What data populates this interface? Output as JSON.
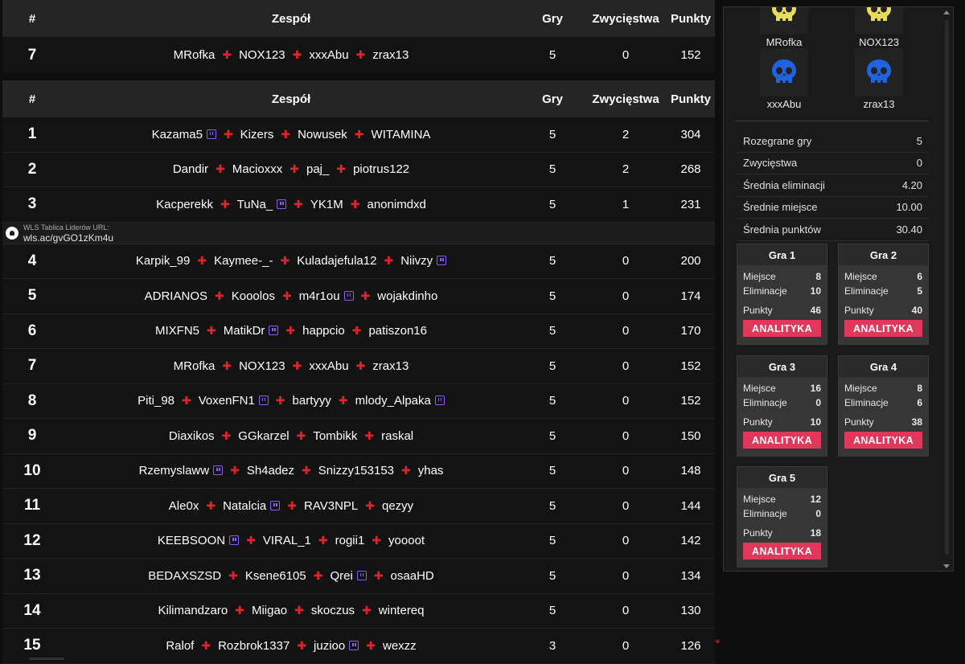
{
  "headers": {
    "num": "#",
    "team": "Zespół",
    "games": "Gry",
    "wins": "Zwycięstwa",
    "points": "Punkty"
  },
  "pinned": {
    "rank": "7",
    "players": [
      "MRofka",
      "NOX123",
      "xxxAbu",
      "zrax13"
    ],
    "games": "5",
    "wins": "0",
    "points": "152"
  },
  "rows": [
    {
      "rank": "1",
      "players": [
        {
          "name": "Kazama5",
          "tw": true
        },
        {
          "name": "Kizers"
        },
        {
          "name": "Nowusek"
        },
        {
          "name": "WITAMINA"
        }
      ],
      "games": "5",
      "wins": "2",
      "points": "304"
    },
    {
      "rank": "2",
      "players": [
        {
          "name": "Dandir"
        },
        {
          "name": "Macioxxx"
        },
        {
          "name": "paj_"
        },
        {
          "name": "piotrus122"
        }
      ],
      "games": "5",
      "wins": "2",
      "points": "268"
    },
    {
      "rank": "3",
      "players": [
        {
          "name": "Kacperekk"
        },
        {
          "name": "TuNa_",
          "tw": true
        },
        {
          "name": "YK1M"
        },
        {
          "name": "anonimdxd"
        }
      ],
      "games": "5",
      "wins": "1",
      "points": "231"
    },
    {
      "rank": "4",
      "players": [
        {
          "name": "Karpik_99"
        },
        {
          "name": "Kaymee-_-"
        },
        {
          "name": "Kuladajefula12"
        },
        {
          "name": "Niivzy",
          "tw": true
        }
      ],
      "games": "5",
      "wins": "0",
      "points": "200"
    },
    {
      "rank": "5",
      "players": [
        {
          "name": "ADRIANOS"
        },
        {
          "name": "Kooolos"
        },
        {
          "name": "m4r1ou",
          "tw": true
        },
        {
          "name": "wojakdinho"
        }
      ],
      "games": "5",
      "wins": "0",
      "points": "174"
    },
    {
      "rank": "6",
      "players": [
        {
          "name": "MIXFN5"
        },
        {
          "name": "MatikDr",
          "tw": true
        },
        {
          "name": "happcio"
        },
        {
          "name": "patiszon16"
        }
      ],
      "games": "5",
      "wins": "0",
      "points": "170"
    },
    {
      "rank": "7",
      "players": [
        {
          "name": "MRofka"
        },
        {
          "name": "NOX123"
        },
        {
          "name": "xxxAbu"
        },
        {
          "name": "zrax13"
        }
      ],
      "games": "5",
      "wins": "0",
      "points": "152"
    },
    {
      "rank": "8",
      "players": [
        {
          "name": "Piti_98"
        },
        {
          "name": "VoxenFN1",
          "tw": true
        },
        {
          "name": "bartyyy"
        },
        {
          "name": "mlody_Alpaka",
          "tw": true
        }
      ],
      "games": "5",
      "wins": "0",
      "points": "152"
    },
    {
      "rank": "9",
      "players": [
        {
          "name": "Diaxikos"
        },
        {
          "name": "GGkarzel"
        },
        {
          "name": "Tombikk"
        },
        {
          "name": "raskal"
        }
      ],
      "games": "5",
      "wins": "0",
      "points": "150"
    },
    {
      "rank": "10",
      "players": [
        {
          "name": "Rzemyslaww",
          "tw": true
        },
        {
          "name": "Sh4adez"
        },
        {
          "name": "Snizzy153153"
        },
        {
          "name": "yhas"
        }
      ],
      "games": "5",
      "wins": "0",
      "points": "148"
    },
    {
      "rank": "11",
      "players": [
        {
          "name": "Ale0x"
        },
        {
          "name": "Natalcia",
          "tw": true
        },
        {
          "name": "RAV3NPL"
        },
        {
          "name": "qezyy"
        }
      ],
      "games": "5",
      "wins": "0",
      "points": "144"
    },
    {
      "rank": "12",
      "players": [
        {
          "name": "KEEBSOON",
          "tw": true
        },
        {
          "name": "VIRAL_1"
        },
        {
          "name": "rogii1"
        },
        {
          "name": "yoooot"
        }
      ],
      "games": "5",
      "wins": "0",
      "points": "142"
    },
    {
      "rank": "13",
      "players": [
        {
          "name": "BEDAXSZSD"
        },
        {
          "name": "Ksene6105"
        },
        {
          "name": "Qrei",
          "tw": true
        },
        {
          "name": "osaaHD"
        }
      ],
      "games": "5",
      "wins": "0",
      "points": "134"
    },
    {
      "rank": "14",
      "players": [
        {
          "name": "Kilimandzaro"
        },
        {
          "name": "Miigao"
        },
        {
          "name": "skoczus"
        },
        {
          "name": "wintereq"
        }
      ],
      "games": "5",
      "wins": "0",
      "points": "130"
    },
    {
      "rank": "15",
      "players": [
        {
          "name": "Ralof"
        },
        {
          "name": "Rozbrok1337"
        },
        {
          "name": "juzioo",
          "tw": true
        },
        {
          "name": "wexzz"
        }
      ],
      "games": "3",
      "wins": "0",
      "points": "126",
      "star": "*"
    }
  ],
  "wls": {
    "label": "WLS Tablica Liderów URL:",
    "url": "wls.ac/gvGO1zKm4u"
  },
  "panel": {
    "players": [
      {
        "name": "MRofka",
        "color": "#e6dc5a"
      },
      {
        "name": "NOX123",
        "color": "#e6dc5a"
      },
      {
        "name": "xxxAbu",
        "color": "#1f63e0"
      },
      {
        "name": "zrax13",
        "color": "#1f63e0"
      }
    ],
    "stats": [
      {
        "label": "Rozegrane gry",
        "value": "5"
      },
      {
        "label": "Zwycięstwa",
        "value": "0"
      },
      {
        "label": "Średnia eliminacji",
        "value": "4.20"
      },
      {
        "label": "Średnie miejsce",
        "value": "10.00"
      },
      {
        "label": "Średnia punktów",
        "value": "30.40"
      }
    ],
    "labels": {
      "place": "Miejsce",
      "elims": "Eliminacje",
      "points": "Punkty",
      "button": "ANALITYKA"
    },
    "games": [
      {
        "title": "Gra 1",
        "place": "8",
        "elims": "10",
        "points": "46"
      },
      {
        "title": "Gra 2",
        "place": "6",
        "elims": "5",
        "points": "40"
      },
      {
        "title": "Gra 3",
        "place": "16",
        "elims": "0",
        "points": "10"
      },
      {
        "title": "Gra 4",
        "place": "8",
        "elims": "6",
        "points": "38"
      },
      {
        "title": "Gra 5",
        "place": "12",
        "elims": "0",
        "points": "18"
      }
    ]
  }
}
